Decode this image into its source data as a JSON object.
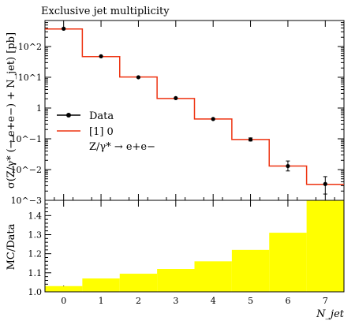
{
  "chart_data": [
    {
      "type": "line",
      "title": "Exclusive jet multiplicity",
      "ylabel": "σ(Z/γ* (→ e+e−) + N_jet) [pb]",
      "yscale": "log",
      "ylim": [
        0.001,
        700
      ],
      "xlim": [
        -0.5,
        7.5
      ],
      "x_ticks": [
        "0",
        "1",
        "2",
        "3",
        "4",
        "5",
        "6",
        "7"
      ],
      "y_tick_labels": [
        "10^2",
        "10^1",
        "1",
        "10^−1",
        "10^−2",
        "10^−3"
      ],
      "legend": {
        "placement": "center-left",
        "entries": [
          "Data",
          "[1] 0",
          "Z/γ* → e+e−"
        ]
      },
      "series": [
        {
          "name": "Data",
          "x": [
            0,
            1,
            2,
            3,
            4,
            5,
            6,
            7
          ],
          "y": [
            380,
            48,
            10,
            2.1,
            0.44,
            0.095,
            0.013,
            0.0034
          ],
          "err_low": [
            0.0,
            0.0,
            0.0,
            0.0,
            0.0,
            0.01,
            0.004,
            0.0018
          ],
          "err_high": [
            0.0,
            0.0,
            0.0,
            0.0,
            0.0,
            0.012,
            0.006,
            0.0025
          ],
          "color": "#000000"
        },
        {
          "name": "[1] 0",
          "x": [
            0,
            1,
            2,
            3,
            4,
            5,
            6,
            7
          ],
          "y": [
            370,
            47,
            10.2,
            2.05,
            0.44,
            0.095,
            0.013,
            0.0033
          ],
          "color": "#ee3311"
        }
      ]
    },
    {
      "type": "area",
      "ylabel": "MC/Data",
      "xlabel": "N_jet",
      "xlim": [
        -0.5,
        7.5
      ],
      "ylim": [
        1.0,
        1.48
      ],
      "x_ticks": [
        "0",
        "1",
        "2",
        "3",
        "4",
        "5",
        "6",
        "7"
      ],
      "y_ticks": [
        "1.0",
        "1.1",
        "1.2",
        "1.3",
        "1.4"
      ],
      "series": [
        {
          "x": [
            0,
            1,
            2,
            3,
            4,
            5,
            6,
            7
          ],
          "values": [
            1.03,
            1.07,
            1.095,
            1.12,
            1.16,
            1.22,
            1.31,
            1.48
          ],
          "color": "#ffff00"
        }
      ]
    }
  ]
}
